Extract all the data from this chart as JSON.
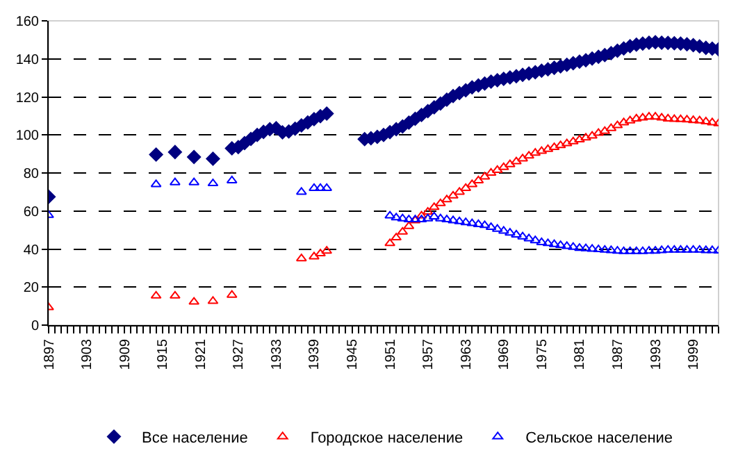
{
  "chart_data": {
    "type": "scatter",
    "series": [
      {
        "name": "Все население",
        "color": "#000080",
        "marker": "diamond",
        "x": [
          1897,
          1914,
          1917,
          1920,
          1923,
          1926,
          1927,
          1928,
          1929,
          1930,
          1931,
          1932,
          1933,
          1934,
          1935,
          1936,
          1937,
          1938,
          1939,
          1940,
          1941,
          1947,
          1948,
          1949,
          1950,
          1951,
          1952,
          1953,
          1954,
          1955,
          1956,
          1957,
          1958,
          1959,
          1960,
          1961,
          1962,
          1963,
          1964,
          1965,
          1966,
          1967,
          1968,
          1969,
          1970,
          1971,
          1972,
          1973,
          1974,
          1975,
          1976,
          1977,
          1978,
          1979,
          1980,
          1981,
          1982,
          1983,
          1984,
          1985,
          1986,
          1987,
          1988,
          1989,
          1990,
          1991,
          1992,
          1993,
          1994,
          1995,
          1996,
          1997,
          1998,
          1999,
          2000,
          2001,
          2002,
          2003
        ],
        "values": [
          67.5,
          89.7,
          91,
          88.4,
          87.5,
          93,
          93.6,
          95.7,
          97.9,
          100,
          101.6,
          103,
          103.6,
          101.4,
          101.8,
          103.3,
          105,
          106.6,
          108.3,
          109.9,
          111.2,
          97.8,
          98.3,
          99,
          100,
          101.5,
          103,
          104.5,
          106.5,
          108.5,
          110.5,
          112.5,
          114.5,
          116.5,
          118.5,
          120.5,
          122,
          123.5,
          125,
          126,
          127,
          128,
          128.8,
          129.5,
          130.2,
          130.9,
          131.6,
          132.3,
          133,
          133.8,
          134.5,
          135.3,
          136.1,
          136.9,
          137.7,
          138.5,
          139.3,
          140.2,
          141.1,
          142,
          143,
          144.3,
          145.5,
          146.7,
          147.5,
          148,
          148.5,
          148.8,
          148.5,
          148.4,
          148.2,
          148,
          147.7,
          147.2,
          146.6,
          145.8,
          145.4,
          145
        ]
      },
      {
        "name": "Городское население",
        "color": "#ff0000",
        "marker": "triangle",
        "x": [
          1897,
          1914,
          1917,
          1920,
          1923,
          1926,
          1937,
          1939,
          1940,
          1941,
          1951,
          1952,
          1953,
          1954,
          1955,
          1956,
          1957,
          1958,
          1959,
          1960,
          1961,
          1962,
          1963,
          1964,
          1965,
          1966,
          1967,
          1968,
          1969,
          1970,
          1971,
          1972,
          1973,
          1974,
          1975,
          1976,
          1977,
          1978,
          1979,
          1980,
          1981,
          1982,
          1983,
          1984,
          1985,
          1986,
          1987,
          1988,
          1989,
          1990,
          1991,
          1992,
          1993,
          1994,
          1995,
          1996,
          1997,
          1998,
          1999,
          2000,
          2001,
          2002,
          2003
        ],
        "values": [
          9.3,
          15.4,
          15.4,
          12.2,
          12.6,
          15.8,
          35,
          36,
          37.6,
          39,
          43,
          46,
          49,
          52,
          55,
          57.5,
          59.5,
          62,
          64,
          66,
          68,
          70,
          72,
          74,
          76,
          78,
          80,
          81.5,
          83,
          84.5,
          86,
          87.5,
          89,
          90.5,
          91.5,
          92.5,
          93.5,
          94.5,
          95.5,
          96.5,
          97.5,
          98.5,
          99.5,
          101,
          102,
          103.5,
          105,
          106.5,
          107.5,
          108.5,
          109,
          109.5,
          109.5,
          109,
          108.5,
          108.3,
          108.2,
          108,
          107.7,
          107.5,
          107,
          106.5,
          106
        ]
      },
      {
        "name": "Сельское население",
        "color": "#0000ff",
        "marker": "triangle",
        "x": [
          1897,
          1914,
          1917,
          1920,
          1923,
          1926,
          1937,
          1939,
          1940,
          1941,
          1951,
          1952,
          1953,
          1954,
          1955,
          1956,
          1957,
          1958,
          1959,
          1960,
          1961,
          1962,
          1963,
          1964,
          1965,
          1966,
          1967,
          1968,
          1969,
          1970,
          1971,
          1972,
          1973,
          1974,
          1975,
          1976,
          1977,
          1978,
          1979,
          1980,
          1981,
          1982,
          1983,
          1984,
          1985,
          1986,
          1987,
          1988,
          1989,
          1990,
          1991,
          1992,
          1993,
          1994,
          1995,
          1996,
          1997,
          1998,
          1999,
          2000,
          2001,
          2002,
          2003
        ],
        "values": [
          57.8,
          74,
          75,
          75,
          74.5,
          76,
          70,
          72,
          72,
          72,
          57.5,
          56.5,
          56,
          55.5,
          55.5,
          55.5,
          56,
          57,
          56,
          55.5,
          55,
          54.5,
          54,
          53.5,
          53,
          52.5,
          51.5,
          50.5,
          49.5,
          48.5,
          47.5,
          46.5,
          45.5,
          44.5,
          43.5,
          43,
          42.5,
          42,
          41.5,
          41,
          40.5,
          40.3,
          40,
          39.8,
          39.5,
          39.3,
          39,
          38.8,
          38.8,
          38.8,
          38.8,
          39,
          39,
          39.3,
          39.5,
          39.5,
          39.5,
          39.5,
          39.5,
          39.5,
          39.3,
          39.3,
          39.1
        ]
      }
    ],
    "xlim": [
      1897,
      2003
    ],
    "xticks": [
      1897,
      1903,
      1909,
      1915,
      1921,
      1927,
      1933,
      1939,
      1945,
      1951,
      1957,
      1963,
      1969,
      1975,
      1981,
      1987,
      1993,
      1999
    ],
    "ylim": [
      0,
      160
    ],
    "yticks": [
      0,
      20,
      40,
      60,
      80,
      100,
      120,
      140,
      160
    ],
    "grid": "y",
    "legend": "bottom"
  }
}
